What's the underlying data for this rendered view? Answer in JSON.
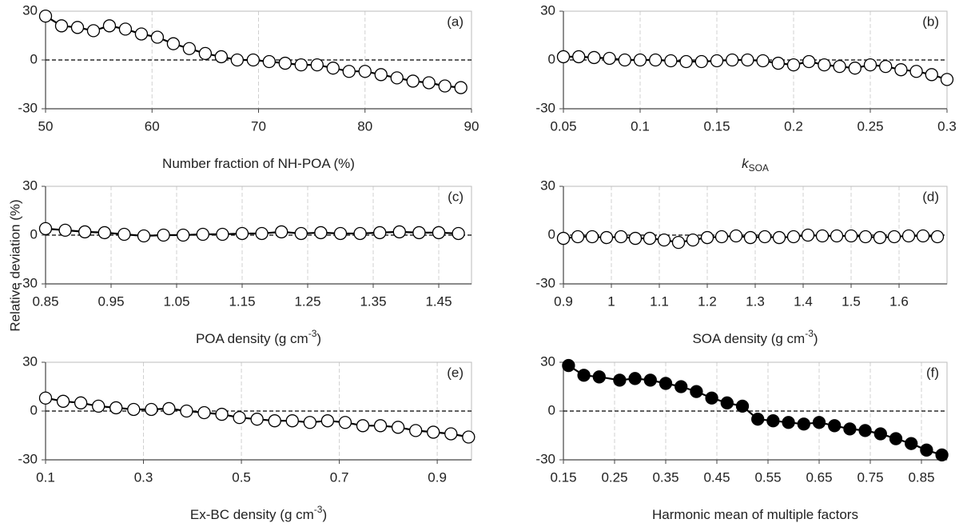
{
  "y_label": "Relative deviation (%)",
  "chart_data": [
    {
      "type": "line",
      "panel_label": "(a)",
      "x_label": [
        {
          "text": "Number fraction of NH-POA (%)"
        }
      ],
      "x": [
        50,
        51.5,
        53,
        54.5,
        56,
        57.5,
        59,
        60.5,
        62,
        63.5,
        65,
        66.5,
        68,
        69.5,
        71,
        72.5,
        74,
        75.5,
        77,
        78.5,
        80,
        81.5,
        83,
        84.5,
        86,
        87.5,
        89
      ],
      "values": [
        27,
        21,
        20,
        18,
        21,
        19,
        16,
        14,
        10,
        7,
        4,
        2,
        0,
        0,
        -1,
        -2,
        -3,
        -3,
        -5,
        -7,
        -7,
        -9,
        -11,
        -13,
        -14,
        -16,
        -17
      ],
      "xlim": [
        50,
        90
      ],
      "xticks": [
        50,
        60,
        70,
        80,
        90
      ],
      "ylim": [
        -30,
        30
      ],
      "yticks": [
        -30,
        0,
        30
      ],
      "hline": 0,
      "grid": true,
      "color": "#000000",
      "marker_fill": "#ffffff"
    },
    {
      "type": "line",
      "panel_label": "(b)",
      "x_label": [
        {
          "text": "k",
          "style": "italic"
        },
        {
          "text": "SOA",
          "script": "sub"
        }
      ],
      "x": [
        0.05,
        0.06,
        0.07,
        0.08,
        0.09,
        0.1,
        0.11,
        0.12,
        0.13,
        0.14,
        0.15,
        0.16,
        0.17,
        0.18,
        0.19,
        0.2,
        0.21,
        0.22,
        0.23,
        0.24,
        0.25,
        0.26,
        0.27,
        0.28,
        0.29,
        0.3
      ],
      "values": [
        2,
        2,
        1.5,
        1,
        0,
        0,
        0,
        -0.5,
        -1,
        -1,
        -0.5,
        0,
        0,
        -0.5,
        -2,
        -3,
        -1,
        -3,
        -4,
        -5,
        -3,
        -4,
        -6,
        -7,
        -9,
        -12
      ],
      "xlim": [
        0.05,
        0.3
      ],
      "xticks": [
        0.05,
        0.1,
        0.15,
        0.2,
        0.25,
        0.3
      ],
      "ylim": [
        -30,
        30
      ],
      "yticks": [
        -30,
        0,
        30
      ],
      "hline": 0,
      "grid": true,
      "color": "#000000",
      "marker_fill": "#ffffff"
    },
    {
      "type": "line",
      "panel_label": "(c)",
      "x_label": [
        {
          "text": "POA density (g cm"
        },
        {
          "text": "-3",
          "script": "super"
        },
        {
          "text": ")"
        }
      ],
      "x": [
        0.85,
        0.88,
        0.91,
        0.94,
        0.97,
        1,
        1.03,
        1.06,
        1.09,
        1.12,
        1.15,
        1.18,
        1.21,
        1.24,
        1.27,
        1.3,
        1.33,
        1.36,
        1.39,
        1.42,
        1.45,
        1.48
      ],
      "values": [
        4,
        3,
        2,
        1.5,
        0.5,
        -0.5,
        0,
        0,
        0.5,
        0.5,
        1,
        1,
        2,
        1,
        1.5,
        1,
        1,
        1.5,
        2,
        1.5,
        1.5,
        1
      ],
      "xlim": [
        0.85,
        1.5
      ],
      "xticks": [
        0.85,
        0.95,
        1.05,
        1.15,
        1.25,
        1.35,
        1.45
      ],
      "ylim": [
        -30,
        30
      ],
      "yticks": [
        -30,
        0,
        30
      ],
      "hline": 0,
      "grid": true,
      "color": "#000000",
      "marker_fill": "#ffffff"
    },
    {
      "type": "line",
      "panel_label": "(d)",
      "x_label": [
        {
          "text": "SOA density (g cm"
        },
        {
          "text": "-3",
          "script": "super"
        },
        {
          "text": ")"
        }
      ],
      "x": [
        0.9,
        0.93,
        0.96,
        0.99,
        1.02,
        1.05,
        1.08,
        1.11,
        1.14,
        1.17,
        1.2,
        1.23,
        1.26,
        1.29,
        1.32,
        1.35,
        1.38,
        1.41,
        1.44,
        1.47,
        1.5,
        1.53,
        1.56,
        1.59,
        1.62,
        1.65,
        1.68
      ],
      "values": [
        -2,
        -1,
        -1,
        -1.5,
        -1,
        -2,
        -2,
        -3,
        -4.5,
        -3,
        -1.5,
        -1,
        -0.5,
        -1.5,
        -1,
        -1.5,
        -1,
        0,
        -0.5,
        -0.5,
        -0.5,
        -1,
        -1.5,
        -1,
        -0.5,
        -0.5,
        -1
      ],
      "xlim": [
        0.9,
        1.7
      ],
      "xticks": [
        0.9,
        1,
        1.1,
        1.2,
        1.3,
        1.4,
        1.5,
        1.6
      ],
      "ylim": [
        -30,
        30
      ],
      "yticks": [
        -30,
        0,
        30
      ],
      "hline": 0,
      "grid": true,
      "color": "#000000",
      "marker_fill": "#ffffff"
    },
    {
      "type": "line",
      "panel_label": "(e)",
      "x_label": [
        {
          "text": "Ex-BC density (g cm"
        },
        {
          "text": "-3",
          "script": "super"
        },
        {
          "text": ")"
        }
      ],
      "x": [
        0.1,
        0.136,
        0.172,
        0.208,
        0.244,
        0.28,
        0.316,
        0.352,
        0.388,
        0.424,
        0.46,
        0.496,
        0.532,
        0.568,
        0.604,
        0.64,
        0.676,
        0.712,
        0.748,
        0.784,
        0.82,
        0.856,
        0.892,
        0.928,
        0.964
      ],
      "values": [
        8,
        6,
        5,
        3,
        2,
        1,
        1,
        1.5,
        0,
        -1,
        -2,
        -4,
        -5,
        -6,
        -6,
        -7,
        -6,
        -7,
        -9,
        -9,
        -10,
        -12,
        -13,
        -14,
        -16
      ],
      "xlim": [
        0.1,
        0.97
      ],
      "xticks": [
        0.1,
        0.3,
        0.5,
        0.7,
        0.9
      ],
      "ylim": [
        -30,
        30
      ],
      "yticks": [
        -30,
        0,
        30
      ],
      "hline": 0,
      "grid": true,
      "color": "#000000",
      "marker_fill": "#ffffff"
    },
    {
      "type": "line",
      "panel_label": "(f)",
      "x_label": [
        {
          "text": "Harmonic mean of multiple factors"
        }
      ],
      "x": [
        0.16,
        0.19,
        0.22,
        0.26,
        0.29,
        0.32,
        0.35,
        0.38,
        0.41,
        0.44,
        0.47,
        0.5,
        0.53,
        0.56,
        0.59,
        0.62,
        0.65,
        0.68,
        0.71,
        0.74,
        0.77,
        0.8,
        0.83,
        0.86,
        0.89
      ],
      "values": [
        28,
        22,
        21,
        19,
        20,
        19,
        17,
        15,
        12,
        8,
        5,
        3,
        -5,
        -6,
        -7,
        -8,
        -7,
        -9,
        -11,
        -12,
        -14,
        -17,
        -20,
        -24,
        -27
      ],
      "xlim": [
        0.15,
        0.9
      ],
      "xticks": [
        0.15,
        0.25,
        0.35,
        0.45,
        0.55,
        0.65,
        0.75,
        0.85
      ],
      "ylim": [
        -30,
        30
      ],
      "yticks": [
        -30,
        0,
        30
      ],
      "hline": 0,
      "grid": true,
      "color": "#000000",
      "marker_fill": "#000000"
    }
  ]
}
